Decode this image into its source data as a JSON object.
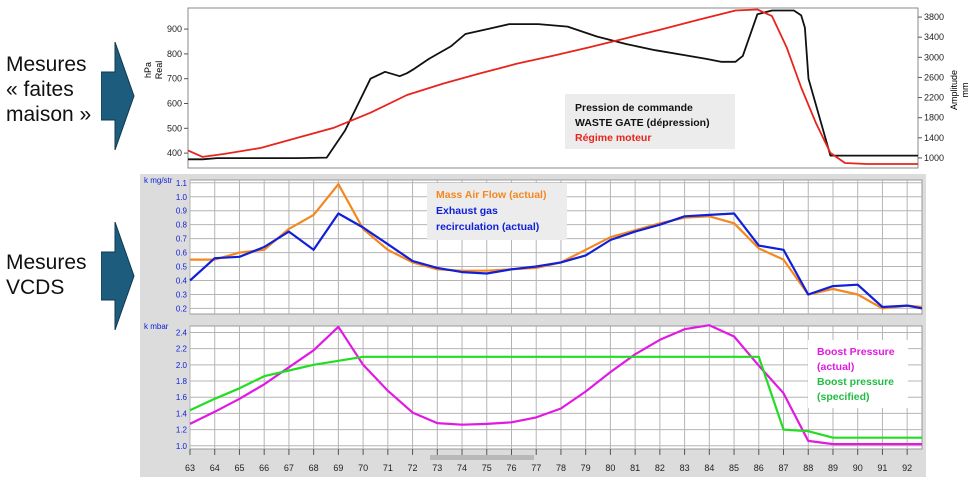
{
  "left_labels": [
    {
      "lines": [
        "Mesures",
        "« faites",
        "maison »"
      ]
    },
    {
      "lines": [
        "Mesures",
        "VCDS"
      ]
    }
  ],
  "colors": {
    "black": "#111111",
    "red": "#e8241c",
    "orange": "#f5871f",
    "blue": "#1020d8",
    "magenta": "#e01ae0",
    "green": "#22dd22",
    "arrow": "#1d5c7c",
    "legend_bg": "#ececec"
  },
  "chart_data": [
    {
      "type": "line",
      "y_left": {
        "unit_top": "hPa",
        "unit_bottom": "Real",
        "ticks": [
          400,
          500,
          600,
          700,
          800,
          900
        ],
        "ylim": [
          340,
          985
        ]
      },
      "y_right": {
        "unit_top": "mm",
        "unit_bottom": "Amplitude",
        "ticks": [
          1000,
          1400,
          1800,
          2200,
          2600,
          3000,
          3400,
          3800
        ],
        "ylim": [
          800,
          3980
        ]
      },
      "legend": [
        "Pression de commande",
        "WASTE GATE (dépression)",
        "Régime moteur"
      ],
      "series": [
        {
          "name": "Pression de commande WASTE GATE (dépression)",
          "axis": "left",
          "x": [
            0,
            0.02,
            0.04,
            0.1,
            0.15,
            0.19,
            0.215,
            0.23,
            0.25,
            0.27,
            0.29,
            0.3,
            0.31,
            0.33,
            0.36,
            0.38,
            0.41,
            0.44,
            0.48,
            0.52,
            0.56,
            0.6,
            0.64,
            0.68,
            0.71,
            0.73,
            0.75,
            0.76,
            0.78,
            0.8,
            0.82,
            0.83,
            0.84,
            0.845,
            0.85,
            0.88,
            0.93,
            1.0
          ],
          "y": [
            375,
            375,
            380,
            380,
            380,
            382,
            490,
            580,
            700,
            728,
            710,
            722,
            740,
            780,
            830,
            880,
            900,
            920,
            920,
            910,
            870,
            840,
            815,
            795,
            780,
            768,
            768,
            792,
            960,
            975,
            975,
            975,
            955,
            905,
            700,
            390,
            390,
            390
          ]
        },
        {
          "name": "Régime moteur",
          "axis": "right",
          "x": [
            0,
            0.02,
            0.05,
            0.1,
            0.15,
            0.2,
            0.25,
            0.3,
            0.35,
            0.4,
            0.45,
            0.5,
            0.55,
            0.6,
            0.65,
            0.7,
            0.75,
            0.78,
            0.8,
            0.82,
            0.84,
            0.86,
            0.88,
            0.9,
            0.93,
            0.96,
            1.0
          ],
          "y": [
            1150,
            1020,
            1080,
            1200,
            1400,
            1600,
            1900,
            2250,
            2480,
            2680,
            2870,
            3030,
            3200,
            3380,
            3560,
            3750,
            3930,
            3950,
            3820,
            3200,
            2400,
            1700,
            1100,
            900,
            880,
            880,
            880
          ]
        }
      ]
    },
    {
      "type": "line",
      "unit": "k mg/str",
      "y_ticks": [
        0.2,
        0.3,
        0.4,
        0.5,
        0.6,
        0.7,
        0.8,
        0.9,
        1.0,
        1.1
      ],
      "ylim": [
        0.16,
        1.12
      ],
      "legend": [
        "Mass Air Flow (actual)",
        "Exhaust gas",
        "recirculation (actual)"
      ],
      "series": [
        {
          "name": "Mass Air Flow (actual)",
          "x": [
            63,
            64,
            65,
            66,
            67,
            68,
            69,
            70,
            71,
            72,
            73,
            74,
            75,
            76,
            77,
            78,
            79,
            80,
            81,
            82,
            83,
            84,
            85,
            86,
            87,
            88,
            89,
            90,
            91,
            92,
            92.6
          ],
          "y": [
            0.55,
            0.55,
            0.6,
            0.62,
            0.77,
            0.87,
            1.09,
            0.77,
            0.62,
            0.53,
            0.48,
            0.47,
            0.47,
            0.48,
            0.49,
            0.53,
            0.62,
            0.71,
            0.76,
            0.81,
            0.85,
            0.86,
            0.81,
            0.63,
            0.55,
            0.3,
            0.34,
            0.3,
            0.2,
            0.22,
            0.21
          ]
        },
        {
          "name": "Exhaust gas recirculation (actual)",
          "x": [
            63,
            63.5,
            64,
            65,
            66,
            67,
            68,
            69,
            70,
            71,
            72,
            73,
            74,
            75,
            76,
            77,
            78,
            79,
            80,
            81,
            82,
            83,
            84,
            85,
            86,
            87,
            88,
            89,
            90,
            91,
            92,
            92.6
          ],
          "y": [
            0.4,
            0.48,
            0.56,
            0.57,
            0.64,
            0.75,
            0.62,
            0.88,
            0.78,
            0.66,
            0.54,
            0.49,
            0.46,
            0.45,
            0.48,
            0.5,
            0.53,
            0.58,
            0.69,
            0.75,
            0.8,
            0.86,
            0.87,
            0.88,
            0.65,
            0.62,
            0.3,
            0.36,
            0.37,
            0.21,
            0.22,
            0.2
          ]
        }
      ]
    },
    {
      "type": "line",
      "unit": "k mbar",
      "y_ticks": [
        1.0,
        1.2,
        1.4,
        1.6,
        1.8,
        2.0,
        2.2,
        2.4
      ],
      "ylim": [
        0.96,
        2.48
      ],
      "legend": [
        "Boost Pressure",
        "(actual)",
        "Boost pressure",
        "(specified)"
      ],
      "series": [
        {
          "name": "Boost Pressure (actual)",
          "x": [
            63,
            64,
            65,
            66,
            67,
            68,
            69,
            70,
            71,
            72,
            73,
            74,
            75,
            76,
            77,
            78,
            79,
            80,
            81,
            82,
            83,
            84,
            85,
            86,
            87,
            88,
            89,
            90,
            91,
            92,
            92.6
          ],
          "y": [
            1.27,
            1.42,
            1.58,
            1.76,
            1.97,
            2.18,
            2.47,
            2.0,
            1.68,
            1.41,
            1.28,
            1.26,
            1.27,
            1.29,
            1.35,
            1.46,
            1.67,
            1.91,
            2.13,
            2.31,
            2.44,
            2.49,
            2.35,
            1.99,
            1.65,
            1.06,
            1.02,
            1.02,
            1.02,
            1.02,
            1.02
          ]
        },
        {
          "name": "Boost pressure (specified)",
          "x": [
            63,
            64,
            65,
            66,
            67,
            68,
            69,
            70,
            71,
            72,
            73,
            74,
            75,
            76,
            77,
            78,
            79,
            80,
            81,
            82,
            83,
            84,
            85,
            86,
            87,
            88,
            89,
            90,
            91,
            92,
            92.6
          ],
          "y": [
            1.44,
            1.58,
            1.71,
            1.86,
            1.93,
            2.0,
            2.05,
            2.1,
            2.1,
            2.1,
            2.1,
            2.1,
            2.1,
            2.1,
            2.1,
            2.1,
            2.1,
            2.1,
            2.1,
            2.1,
            2.1,
            2.1,
            2.1,
            2.1,
            1.2,
            1.18,
            1.1,
            1.1,
            1.1,
            1.1,
            1.1
          ]
        }
      ]
    }
  ],
  "x_axis": {
    "ticks": [
      63,
      64,
      65,
      66,
      67,
      68,
      69,
      70,
      71,
      72,
      73,
      74,
      75,
      76,
      77,
      78,
      79,
      80,
      81,
      82,
      83,
      84,
      85,
      86,
      87,
      88,
      89,
      90,
      91,
      92
    ],
    "xlim": [
      63,
      92.6
    ]
  }
}
